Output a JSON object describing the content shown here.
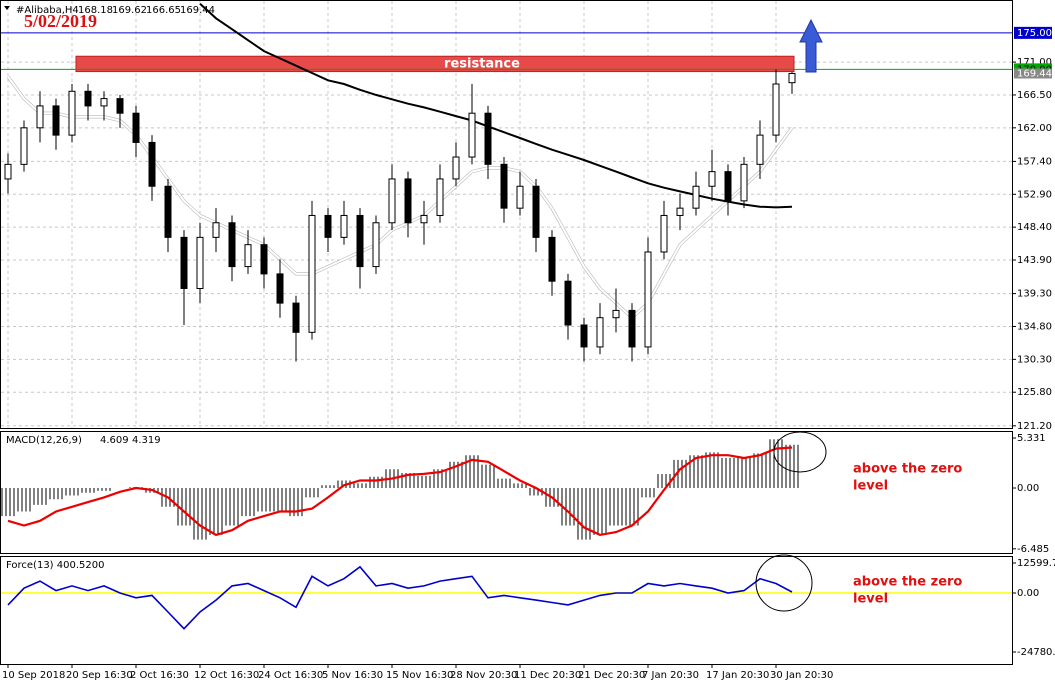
{
  "chart_data": [
    {
      "type": "candlestick",
      "title": "#Alibaba,H4",
      "date": "5/02/2019",
      "ohlc": [
        [
          155,
          158.5,
          153,
          157
        ],
        [
          157,
          163,
          156,
          162
        ],
        [
          162,
          167,
          160,
          165
        ],
        [
          165,
          166,
          159,
          161
        ],
        [
          161,
          168,
          160,
          167
        ],
        [
          167,
          168,
          163,
          165
        ],
        [
          165,
          167,
          163,
          166
        ],
        [
          166,
          166.5,
          162,
          164
        ],
        [
          164,
          165,
          158,
          160
        ],
        [
          160,
          161,
          152,
          154
        ],
        [
          154,
          155,
          145,
          147
        ],
        [
          147,
          148,
          135,
          140
        ],
        [
          140,
          149,
          138,
          147
        ],
        [
          147,
          151,
          145,
          149
        ],
        [
          149,
          150,
          141,
          143
        ],
        [
          143,
          148,
          142,
          146
        ],
        [
          146,
          147,
          140,
          142
        ],
        [
          142,
          144,
          136,
          138
        ],
        [
          138,
          139,
          130,
          134
        ],
        [
          134,
          152,
          133,
          150
        ],
        [
          150,
          151,
          145,
          147
        ],
        [
          147,
          152,
          146,
          150
        ],
        [
          150,
          151,
          140,
          143
        ],
        [
          143,
          150,
          142,
          149
        ],
        [
          149,
          157,
          148,
          155
        ],
        [
          155,
          156,
          147,
          149
        ],
        [
          149,
          152,
          146,
          150
        ],
        [
          150,
          157,
          149,
          155
        ],
        [
          155,
          160,
          154,
          158
        ],
        [
          158,
          168,
          157,
          164
        ],
        [
          164,
          165,
          155,
          157
        ],
        [
          157,
          158,
          149,
          151
        ],
        [
          151,
          156,
          150,
          154
        ],
        [
          154,
          155,
          145,
          147
        ],
        [
          147,
          148,
          139,
          141
        ],
        [
          141,
          142,
          133,
          135
        ],
        [
          135,
          136,
          130,
          132
        ],
        [
          132,
          138,
          131,
          136
        ],
        [
          136,
          140,
          134,
          137
        ],
        [
          137,
          138,
          130,
          132
        ],
        [
          132,
          147,
          131,
          145
        ],
        [
          145,
          152,
          144,
          150
        ],
        [
          150,
          153,
          148,
          151
        ],
        [
          151,
          156,
          150,
          154
        ],
        [
          154,
          159,
          152,
          156
        ],
        [
          156,
          157,
          150,
          152
        ],
        [
          152,
          158,
          151,
          157
        ],
        [
          157,
          163,
          155,
          161
        ],
        [
          161,
          170,
          160,
          168
        ],
        [
          168.18,
          169.62,
          166.65,
          169.44
        ]
      ],
      "series": [
        {
          "color": "#ffffff",
          "values": [
            169,
            166,
            164,
            164,
            163.5,
            163.5,
            163.5,
            163,
            161,
            158,
            155,
            152,
            150,
            149,
            148,
            147,
            146,
            144,
            142,
            142,
            143,
            144,
            145,
            146,
            148,
            149,
            150,
            152,
            154,
            156,
            156.5,
            156.5,
            156,
            154,
            151,
            147,
            143,
            140,
            138,
            136,
            138,
            142,
            146,
            148,
            150,
            152,
            154,
            156,
            159,
            162
          ]
        },
        {
          "color": "#000000",
          "values": [
            null,
            null,
            null,
            null,
            null,
            null,
            null,
            null,
            null,
            null,
            null,
            null,
            179,
            177,
            175.5,
            174,
            172.5,
            171.5,
            170.5,
            169.5,
            168.5,
            168,
            167.2,
            166.5,
            165.9,
            165.3,
            164.8,
            164.2,
            163.6,
            163,
            162.2,
            161.4,
            160.6,
            159.8,
            159,
            158.3,
            157.6,
            156.8,
            156,
            155.2,
            154.4,
            153.8,
            153.3,
            152.8,
            152.3,
            151.9,
            151.5,
            151.2,
            151.1,
            151.2
          ]
        }
      ],
      "zone": {
        "label": "resistance",
        "from": 169.7,
        "to": 171.8,
        "color": "#e84a4a"
      },
      "hlines": [
        {
          "value": 175,
          "label": "175.00",
          "color": "#0000cc"
        },
        {
          "value": 170,
          "label": "170.00",
          "color": "#00aa00"
        }
      ],
      "ylim": [
        120.9,
        179.5
      ],
      "yticks": [
        {
          "value": 171,
          "label": "171.00"
        },
        {
          "value": 166.5,
          "label": "166.50"
        },
        {
          "value": 162,
          "label": "162.00"
        },
        {
          "value": 157.4,
          "label": "157.40"
        },
        {
          "value": 152.9,
          "label": "152.90"
        },
        {
          "value": 148.4,
          "label": "148.40"
        },
        {
          "value": 143.9,
          "label": "143.90"
        },
        {
          "value": 139.3,
          "label": "139.30"
        },
        {
          "value": 134.8,
          "label": "134.80"
        },
        {
          "value": 130.3,
          "label": "130.30"
        },
        {
          "value": 125.8,
          "label": "125.80"
        },
        {
          "value": 121.2,
          "label": "121.20"
        }
      ],
      "xlim": [
        -0.5,
        62.75
      ],
      "grid": true
    },
    {
      "type": "macd",
      "title": "MACD(12,26,9)",
      "histogram": {
        "color": "#000000",
        "values": [
          -3,
          -2.5,
          -1.8,
          -1.2,
          -0.8,
          -0.5,
          -0.3,
          0,
          0.1,
          -0.5,
          -2,
          -4,
          -5.5,
          -5,
          -4,
          -3,
          -2.5,
          -2.5,
          -3,
          -1,
          0.3,
          0.8,
          0.5,
          1.2,
          2,
          1.6,
          1.3,
          2,
          2.8,
          3.5,
          2.5,
          1,
          0.5,
          -0.8,
          -2,
          -4,
          -5.5,
          -5,
          -4,
          -4,
          -1,
          1.5,
          3,
          3.5,
          3.8,
          3.2,
          3.3,
          3.7,
          5.2,
          4.609
        ]
      },
      "series": [
        {
          "color": "#ee0000",
          "values": [
            -3.5,
            -4,
            -3.5,
            -2.5,
            -2,
            -1.5,
            -1,
            -0.4,
            0,
            -0.2,
            -1,
            -2.5,
            -4,
            -5,
            -4.5,
            -3.5,
            -3,
            -2.5,
            -2.5,
            -2.2,
            -1,
            0.3,
            0.8,
            0.8,
            1,
            1.4,
            1.5,
            1.7,
            2.3,
            3,
            2.8,
            1.8,
            0.8,
            0,
            -1,
            -2.5,
            -4.2,
            -5,
            -4.7,
            -4,
            -2.5,
            -0.2,
            2,
            3.2,
            3.5,
            3.5,
            3.2,
            3.5,
            4.2,
            4.319
          ]
        }
      ],
      "ylim": [
        -6.93,
        6.08
      ],
      "yticks": [
        5.331,
        {
          "value": 0,
          "label": "0.00"
        },
        -6.485
      ],
      "xlim": [
        -0.5,
        62.75
      ],
      "annotation": [
        "above the zero",
        "level"
      ]
    },
    {
      "type": "line",
      "title": "Force(13) 400.5200",
      "series": [
        {
          "color": "#0000cc",
          "values": [
            -5000,
            2000,
            5000,
            1000,
            3000,
            1000,
            3000,
            0,
            -2000,
            -1000,
            -8000,
            -15000,
            -8000,
            -3000,
            3000,
            4000,
            1000,
            -2000,
            -6000,
            7000,
            3000,
            6000,
            11000,
            3000,
            4000,
            2000,
            3000,
            5000,
            6000,
            7000,
            -2000,
            -1000,
            -2000,
            -3000,
            -4000,
            -5000,
            -3000,
            -1000,
            0,
            0,
            4000,
            3000,
            4000,
            3000,
            2000,
            0,
            1000,
            6000,
            4000,
            400.52
          ]
        }
      ],
      "zero_line_color": "#ffff00",
      "ylim": [
        -29820,
        15540
      ],
      "yticks": [
        12599.75,
        {
          "value": 0,
          "label": "0.00"
        },
        -24780.3
      ],
      "xlim": [
        -0.5,
        62.75
      ],
      "xticks": [
        {
          "value": 0,
          "label": "10 Sep 2018"
        },
        {
          "value": 4,
          "label": "20 Sep 16:30"
        },
        {
          "value": 8,
          "label": "2 Oct 16:30"
        },
        {
          "value": 12,
          "label": "12 Oct 16:30"
        },
        {
          "value": 16,
          "label": "24 Oct 16:30"
        },
        {
          "value": 20,
          "label": "5 Nov 16:30"
        },
        {
          "value": 24,
          "label": "15 Nov 16:30"
        },
        {
          "value": 28,
          "label": "28 Nov 20:30"
        },
        {
          "value": 32,
          "label": "11 Dec 20:30"
        },
        {
          "value": 36,
          "label": "21 Dec 20:30"
        },
        {
          "value": 40,
          "label": "7 Jan 20:30"
        },
        {
          "value": 44,
          "label": "17 Jan 20:30"
        },
        {
          "value": 48,
          "label": "30 Jan 20:30"
        }
      ],
      "annotation": [
        "above the zero",
        "level"
      ]
    }
  ]
}
